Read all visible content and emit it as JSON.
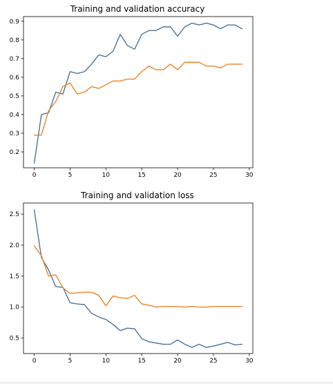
{
  "chart_data": [
    {
      "type": "line",
      "title": "Training and validation accuracy",
      "xlabel": "",
      "ylabel": "",
      "xlim": [
        -1.5,
        30.5
      ],
      "ylim": [
        0.115,
        0.925
      ],
      "x_ticks": [
        0,
        5,
        10,
        15,
        20,
        25,
        30
      ],
      "y_ticks": [
        0.2,
        0.3,
        0.4,
        0.5,
        0.6,
        0.7,
        0.8,
        0.9
      ],
      "grid": false,
      "legend": "none",
      "x": [
        0,
        1,
        2,
        3,
        4,
        5,
        6,
        7,
        8,
        9,
        10,
        11,
        12,
        13,
        14,
        15,
        16,
        17,
        18,
        19,
        20,
        21,
        22,
        23,
        24,
        25,
        26,
        27,
        28,
        29
      ],
      "series": [
        {
          "color": "#4c7396",
          "values": [
            0.14,
            0.4,
            0.41,
            0.52,
            0.51,
            0.63,
            0.62,
            0.63,
            0.67,
            0.72,
            0.71,
            0.74,
            0.83,
            0.77,
            0.75,
            0.83,
            0.85,
            0.85,
            0.87,
            0.87,
            0.82,
            0.87,
            0.89,
            0.88,
            0.89,
            0.88,
            0.86,
            0.88,
            0.88,
            0.86
          ]
        },
        {
          "color": "#e8852a",
          "values": [
            0.29,
            0.29,
            0.42,
            0.47,
            0.55,
            0.57,
            0.51,
            0.52,
            0.55,
            0.54,
            0.56,
            0.58,
            0.58,
            0.59,
            0.59,
            0.63,
            0.66,
            0.64,
            0.64,
            0.67,
            0.64,
            0.68,
            0.68,
            0.68,
            0.66,
            0.66,
            0.65,
            0.67,
            0.67,
            0.67
          ]
        }
      ]
    },
    {
      "type": "line",
      "title": "Training and validation loss",
      "xlabel": "",
      "ylabel": "",
      "xlim": [
        -1.5,
        30.5
      ],
      "ylim": [
        0.25,
        2.68
      ],
      "x_ticks": [
        0,
        5,
        10,
        15,
        20,
        25,
        30
      ],
      "y_ticks": [
        0.5,
        1.0,
        1.5,
        2.0,
        2.5
      ],
      "y_tick_labels": [
        "0.5",
        "1.0",
        "1.5",
        "2.0",
        "2.5"
      ],
      "grid": false,
      "legend": "none",
      "x": [
        0,
        1,
        2,
        3,
        4,
        5,
        6,
        7,
        8,
        9,
        10,
        11,
        12,
        13,
        14,
        15,
        16,
        17,
        18,
        19,
        20,
        21,
        22,
        23,
        24,
        25,
        26,
        27,
        28,
        29
      ],
      "series": [
        {
          "color": "#4c7396",
          "values": [
            2.57,
            1.8,
            1.6,
            1.33,
            1.32,
            1.07,
            1.05,
            1.04,
            0.9,
            0.84,
            0.8,
            0.72,
            0.62,
            0.66,
            0.65,
            0.49,
            0.44,
            0.42,
            0.4,
            0.4,
            0.47,
            0.4,
            0.35,
            0.4,
            0.35,
            0.37,
            0.4,
            0.43,
            0.39,
            0.4
          ]
        },
        {
          "color": "#e8852a",
          "values": [
            1.99,
            1.83,
            1.5,
            1.52,
            1.31,
            1.22,
            1.23,
            1.24,
            1.24,
            1.19,
            1.02,
            1.18,
            1.15,
            1.14,
            1.19,
            1.05,
            1.03,
            1.0,
            1.01,
            1.01,
            1.01,
            1.0,
            1.01,
            1.0,
            1.0,
            1.01,
            1.01,
            1.01,
            1.01,
            1.01
          ]
        }
      ]
    }
  ]
}
